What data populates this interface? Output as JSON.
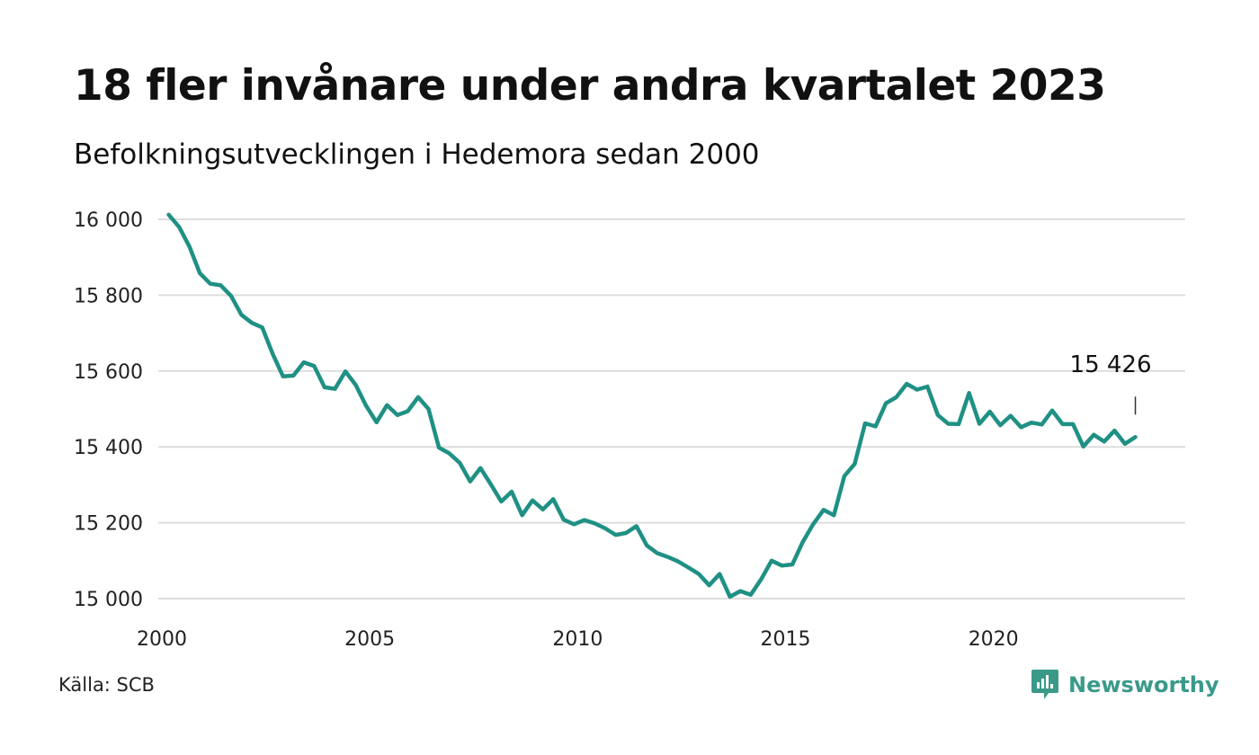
{
  "title": "18 fler invånare under andra kvartalet 2023",
  "subtitle": "Befolkningsutvecklingen i Hedemora sedan 2000",
  "source": "Källa: SCB",
  "brand": {
    "name": "Newsworthy",
    "icon": "newsworthy-logo-icon",
    "color": "#3a9a8a"
  },
  "colors": {
    "line": "#1f9084",
    "grid": "#dddddd",
    "text": "#111111"
  },
  "chart_data": {
    "type": "line",
    "title": "18 fler invånare under andra kvartalet 2023",
    "subtitle": "Befolkningsutvecklingen i Hedemora sedan 2000",
    "xlabel": "",
    "ylabel": "",
    "xlim": [
      2000,
      2024.7
    ],
    "ylim": [
      15000,
      16000
    ],
    "x_ticks": [
      2000,
      2005,
      2010,
      2015,
      2020
    ],
    "x_tick_labels": [
      "2000",
      "2005",
      "2010",
      "2015",
      "2020"
    ],
    "y_ticks": [
      15000,
      15200,
      15400,
      15600,
      15800,
      16000
    ],
    "y_tick_labels": [
      "15 000",
      "15 200",
      "15 400",
      "15 600",
      "15 800",
      "16 000"
    ],
    "grid": true,
    "legend": "none",
    "annotation": {
      "text": "15 426",
      "x": 2023.5,
      "y": 15426
    },
    "series": [
      {
        "x": [
          2000.25,
          2000.5,
          2000.75,
          2001.0,
          2001.25,
          2001.5,
          2001.75,
          2002.0,
          2002.25,
          2002.5,
          2002.75,
          2003.0,
          2003.25,
          2003.5,
          2003.75,
          2004.0,
          2004.25,
          2004.5,
          2004.75,
          2005.0,
          2005.25,
          2005.5,
          2005.75,
          2006.0,
          2006.25,
          2006.5,
          2006.75,
          2007.0,
          2007.25,
          2007.5,
          2007.75,
          2008.0,
          2008.25,
          2008.5,
          2008.75,
          2009.0,
          2009.25,
          2009.5,
          2009.75,
          2010.0,
          2010.25,
          2010.5,
          2010.75,
          2011.0,
          2011.25,
          2011.5,
          2011.75,
          2012.0,
          2012.25,
          2012.5,
          2012.75,
          2013.0,
          2013.25,
          2013.5,
          2013.75,
          2014.0,
          2014.25,
          2014.5,
          2014.75,
          2015.0,
          2015.25,
          2015.5,
          2015.75,
          2016.0,
          2016.25,
          2016.5,
          2016.75,
          2017.0,
          2017.25,
          2017.5,
          2017.75,
          2018.0,
          2018.25,
          2018.5,
          2018.75,
          2019.0,
          2019.25,
          2019.5,
          2019.75,
          2020.0,
          2020.25,
          2020.5,
          2020.75,
          2021.0,
          2021.25,
          2021.5,
          2021.75,
          2022.0,
          2022.25,
          2022.5,
          2022.75,
          2023.0,
          2023.25,
          2023.5
        ],
        "values": [
          16012,
          15980,
          15928,
          15858,
          15830,
          15826,
          15798,
          15748,
          15727,
          15715,
          15646,
          15586,
          15588,
          15623,
          15613,
          15557,
          15553,
          15599,
          15563,
          15508,
          15465,
          15510,
          15484,
          15494,
          15531,
          15500,
          15398,
          15383,
          15358,
          15309,
          15344,
          15301,
          15256,
          15282,
          15220,
          15259,
          15235,
          15262,
          15208,
          15196,
          15207,
          15198,
          15185,
          15168,
          15173,
          15191,
          15140,
          15120,
          15110,
          15098,
          15082,
          15065,
          15035,
          15065,
          15005,
          15020,
          15010,
          15051,
          15100,
          15087,
          15090,
          15149,
          15196,
          15234,
          15220,
          15323,
          15355,
          15462,
          15454,
          15515,
          15531,
          15566,
          15551,
          15559,
          15484,
          15461,
          15460,
          15542,
          15461,
          15493,
          15457,
          15482,
          15452,
          15464,
          15459,
          15496,
          15460,
          15460,
          15401,
          15432,
          15414,
          15443,
          15408,
          15426
        ]
      }
    ]
  }
}
